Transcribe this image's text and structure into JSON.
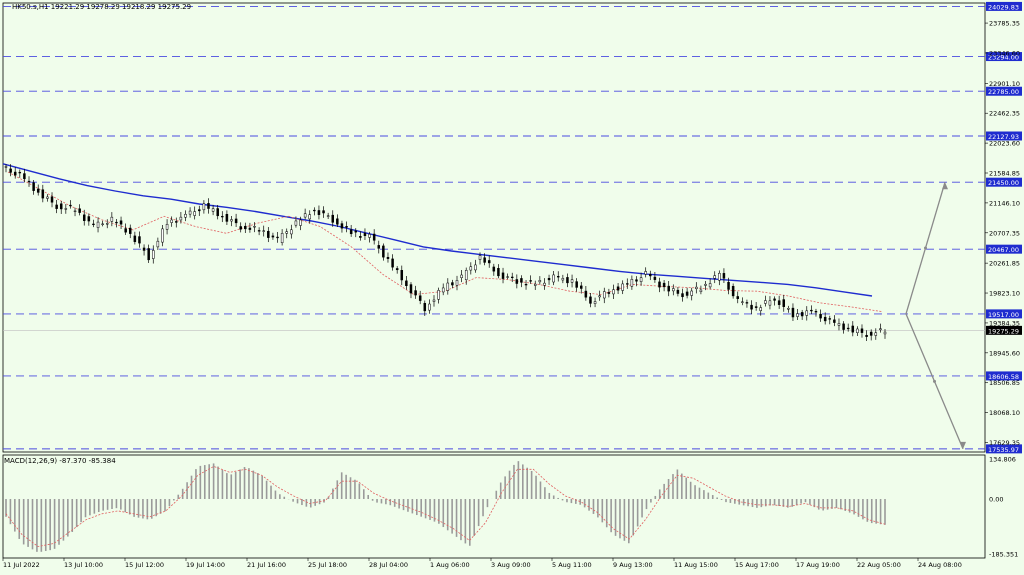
{
  "header": {
    "symbol_line": "HK50.s,H1  19221.29 19278.29 19218.29 19275.29"
  },
  "macd_header": {
    "label": "MACD(12,26,9) -87.370 -85.384"
  },
  "colors": {
    "background": "#f0fdeb",
    "candle": "#000000",
    "ma_slow": "#1f2ccf",
    "ma_fast": "#e06060",
    "level_line": "#4a4ae0",
    "level_tag": "#1f2ccf",
    "arrow": "#8a8a8a",
    "histogram": "#9a9a9a"
  },
  "chart_data": [
    {
      "type": "line",
      "title": "HK50.s,H1",
      "price_axis_ticks": [
        "23785.35",
        "23346.60",
        "22901.10",
        "22462.35",
        "22023.60",
        "21584.85",
        "21146.10",
        "20707.35",
        "20261.85",
        "19823.10",
        "19384.35",
        "18945.60",
        "18506.85",
        "18068.10",
        "17629.35"
      ],
      "ylim": [
        17490,
        24080
      ],
      "horizontal_levels": [
        24029.83,
        23294.0,
        22785.0,
        22127.93,
        21450.0,
        20467.0,
        19517.0,
        18606.58,
        17535.97
      ],
      "current_price": 19275.29,
      "x_labels": [
        "11 Jul 2022",
        "13 Jul 10:00",
        "15 Jul 12:00",
        "19 Jul 14:00",
        "21 Jul 16:00",
        "25 Jul 18:00",
        "28 Jul 04:00",
        "1 Aug 06:00",
        "3 Aug 09:00",
        "5 Aug 11:00",
        "9 Aug 13:00",
        "11 Aug 15:00",
        "15 Aug 17:00",
        "17 Aug 19:00",
        "22 Aug 05:00",
        "24 Aug 08:00"
      ],
      "close_series": [
        21550,
        21300,
        21100,
        21050,
        20800,
        20900,
        20700,
        20350,
        20850,
        20950,
        21100,
        20950,
        20800,
        20750,
        20600,
        20850,
        21050,
        20900,
        20700,
        20650,
        20300,
        19950,
        19600,
        19900,
        20050,
        20350,
        20100,
        20000,
        19950,
        20050,
        20000,
        19700,
        19850,
        19950,
        20100,
        19900,
        19800,
        19900,
        20100,
        19700,
        19600,
        19750,
        19500,
        19550,
        19400,
        19300,
        19220,
        19275
      ],
      "series": [
        {
          "name": "MA slow",
          "values": [
            21720,
            21610,
            21500,
            21400,
            21320,
            21250,
            21200,
            21130,
            21080,
            21020,
            20950,
            20880,
            20800,
            20700,
            20600,
            20500,
            20440,
            20390,
            20340,
            20290,
            20240,
            20190,
            20140,
            20100,
            20070,
            20040,
            20010,
            19980,
            19950,
            19900,
            19840,
            19780
          ]
        },
        {
          "name": "MA fast",
          "values": [
            21600,
            21350,
            21100,
            20900,
            20750,
            20950,
            20800,
            20700,
            20850,
            20950,
            20800,
            20500,
            20100,
            19800,
            19850,
            20050,
            20020,
            19950,
            19850,
            19800,
            19950,
            19920,
            19900,
            19860,
            19850,
            19780,
            19680,
            19620,
            19550
          ]
        }
      ],
      "projection_arrows": [
        {
          "from": 19517.0,
          "to": 21450.0
        },
        {
          "from": 19517.0,
          "to": 17535.97
        }
      ]
    },
    {
      "type": "bar",
      "title": "MACD(12,26,9)",
      "ylim": [
        -185.351,
        134.806
      ],
      "axis_ticks": [
        "134.806",
        "0.00",
        "-185.351"
      ],
      "values": [
        -60,
        -150,
        -180,
        -170,
        -120,
        -60,
        -40,
        -30,
        -60,
        -70,
        -40,
        30,
        110,
        120,
        80,
        110,
        80,
        20,
        -10,
        -30,
        -10,
        90,
        60,
        -10,
        -20,
        -40,
        -60,
        -80,
        -120,
        -160,
        -40,
        60,
        130,
        90,
        20,
        -10,
        -20,
        -60,
        -120,
        -150,
        -40,
        40,
        100,
        50,
        20,
        -10,
        -20,
        -30,
        -20,
        -30,
        -10,
        -40,
        -30,
        -50,
        -80,
        -87
      ],
      "signal": [
        -50,
        -120,
        -160,
        -150,
        -110,
        -70,
        -50,
        -40,
        -50,
        -60,
        -40,
        10,
        80,
        110,
        90,
        100,
        80,
        40,
        10,
        -15,
        -5,
        60,
        60,
        20,
        -5,
        -25,
        -45,
        -70,
        -100,
        -140,
        -80,
        20,
        100,
        100,
        50,
        10,
        -10,
        -45,
        -100,
        -135,
        -70,
        10,
        80,
        70,
        40,
        10,
        -10,
        -20,
        -20,
        -25,
        -15,
        -30,
        -30,
        -40,
        -70,
        -85
      ]
    }
  ]
}
